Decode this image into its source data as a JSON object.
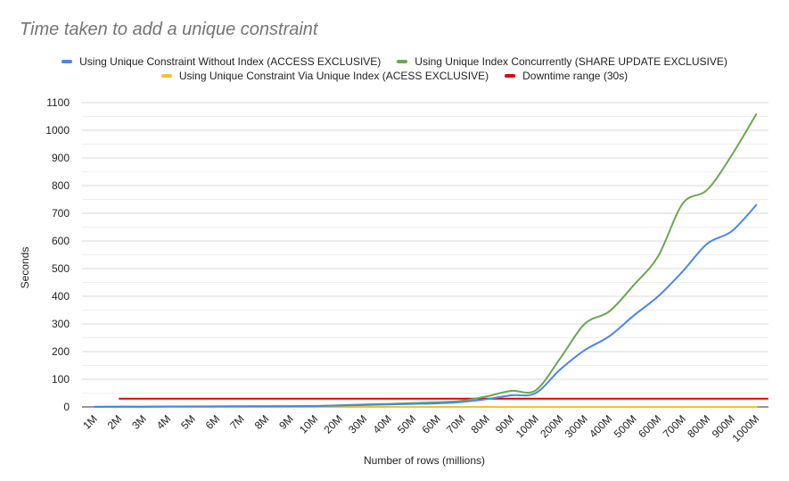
{
  "chart_data": {
    "type": "line",
    "title": "Time taken to add a unique constraint",
    "xlabel": "Number of rows (millions)",
    "ylabel": "Seconds",
    "ylim": [
      0,
      1100
    ],
    "yticks": [
      0,
      100,
      200,
      300,
      400,
      500,
      600,
      700,
      800,
      900,
      1000,
      1100
    ],
    "grid": true,
    "legend_position": "top",
    "categories": [
      "1M",
      "2M",
      "3M",
      "4M",
      "5M",
      "6M",
      "7M",
      "8M",
      "9M",
      "10M",
      "20M",
      "30M",
      "40M",
      "50M",
      "60M",
      "70M",
      "80M",
      "90M",
      "100M",
      "200M",
      "300M",
      "400M",
      "500M",
      "600M",
      "700M",
      "800M",
      "900M",
      "1000M"
    ],
    "series": [
      {
        "name": "Using Unique Constraint Without Index (ACCESS EXCLUSIVE)",
        "color": "#4a86e8",
        "values": [
          0.5,
          1,
          1,
          1.5,
          1.5,
          2,
          2,
          2,
          2.5,
          3,
          5,
          7,
          9,
          11,
          13,
          18,
          28,
          42,
          50,
          135,
          205,
          255,
          330,
          400,
          490,
          590,
          635,
          730
        ]
      },
      {
        "name": "Using Unique Index Concurrently (SHARE UPDATE EXCLUSIVE)",
        "color": "#6aa84f",
        "values": [
          0.5,
          1,
          1,
          1.5,
          2,
          2,
          2.5,
          3,
          3,
          3.5,
          6,
          9,
          11,
          14,
          17,
          22,
          38,
          58,
          60,
          175,
          300,
          345,
          440,
          545,
          735,
          785,
          910,
          1058
        ]
      },
      {
        "name": "Using Unique Constraint Via Unique Index (ACESS EXCLUSIVE)",
        "color": "#f1c232",
        "values": [
          0,
          0,
          0,
          0,
          0,
          0,
          0,
          0,
          0,
          0,
          0,
          0,
          0,
          0,
          0,
          0,
          0,
          0,
          0,
          0,
          0,
          0,
          0,
          0,
          0,
          0,
          0,
          0
        ]
      },
      {
        "name": "Downtime range (30s)",
        "color": "#e00000",
        "constant": 30
      }
    ]
  }
}
